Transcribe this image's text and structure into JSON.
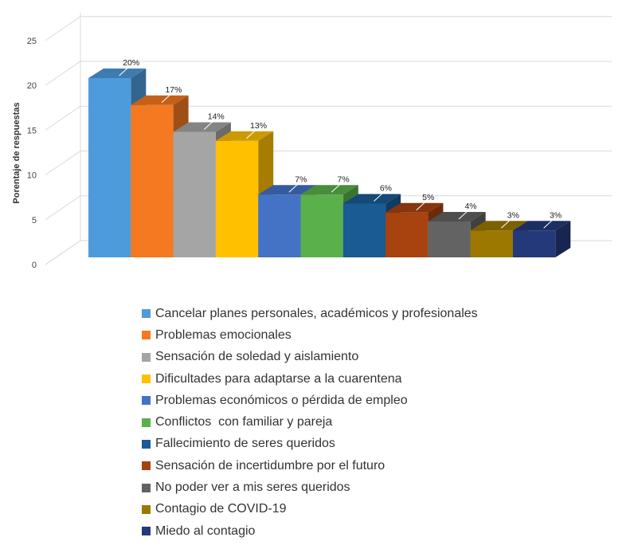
{
  "chart_data": {
    "type": "bar",
    "ylabel": "Porentaje de respuestas",
    "ylim": [
      0,
      25
    ],
    "yticks": [
      "0",
      "5",
      "10",
      "15",
      "20",
      "25"
    ],
    "grid": true,
    "legend_position": "bottom",
    "categories": [
      "Cancelar planes personales, académicos y profesionales",
      "Problemas emocionales",
      "Sensación de soledad y aislamiento",
      "Dificultades para adaptarse a la cuarentena",
      "Problemas económicos o pérdida de empleo",
      "Conflictos  con familiar y pareja",
      "Fallecimiento de seres queridos",
      "Sensación de incertidumbre por el futuro",
      "No poder ver a mis seres queridos",
      "Contagio de COVID-19",
      "Miedo al contagio"
    ],
    "values": [
      20,
      17,
      14,
      13,
      7,
      7,
      6,
      5,
      4,
      3,
      3
    ],
    "data_labels": [
      "20%",
      "17%",
      "14%",
      "13%",
      "7%",
      "7%",
      "6%",
      "5%",
      "4%",
      "3%",
      "3%"
    ],
    "colors": [
      "#4e9bdc",
      "#f47920",
      "#a5a5a5",
      "#ffc000",
      "#4472c4",
      "#5ab04a",
      "#1a5b94",
      "#a8420f",
      "#636363",
      "#9c7800",
      "#24397a"
    ]
  }
}
